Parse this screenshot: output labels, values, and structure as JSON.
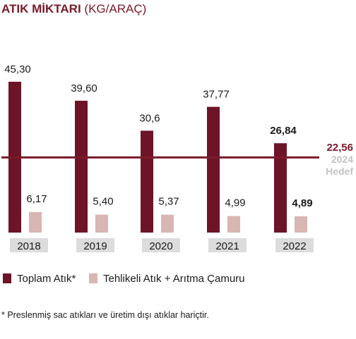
{
  "title": {
    "main": "ATIK MİKTARI",
    "unit": "(KG/ARAÇ)"
  },
  "chart_data": {
    "type": "bar",
    "title": "ATIK MİKTARI (KG/ARAÇ)",
    "categories": [
      "2018",
      "2019",
      "2020",
      "2021",
      "2022"
    ],
    "series": [
      {
        "name": "Toplam Atık*",
        "values": [
          45.3,
          39.6,
          30.6,
          37.77,
          26.84
        ],
        "labels": [
          "45,30",
          "39,60",
          "30,6",
          "37,77",
          "26,84"
        ],
        "color": "#6e1428"
      },
      {
        "name": "Tehlikeli Atık + Arıtma Çamuru",
        "values": [
          6.17,
          5.4,
          5.37,
          4.99,
          4.89
        ],
        "labels": [
          "6,17",
          "5,40",
          "5,37",
          "4,99",
          "4,89"
        ],
        "color": "#d8b6b2"
      }
    ],
    "target": {
      "value": 22.56,
      "label": "22,56",
      "year_label": "2024",
      "text": "Hedef",
      "color": "#7a1a2a"
    },
    "ylim": [
      0,
      48
    ],
    "grid": false,
    "legend": "bottom-left",
    "bold_category": "2022"
  },
  "legend": {
    "item1": "Toplam Atık*",
    "item2": "Tehlikeli Atık + Arıtma Çamuru"
  },
  "footnote": "* Preslenmiş sac atıkları ve üretim dışı atıklar hariçtir."
}
